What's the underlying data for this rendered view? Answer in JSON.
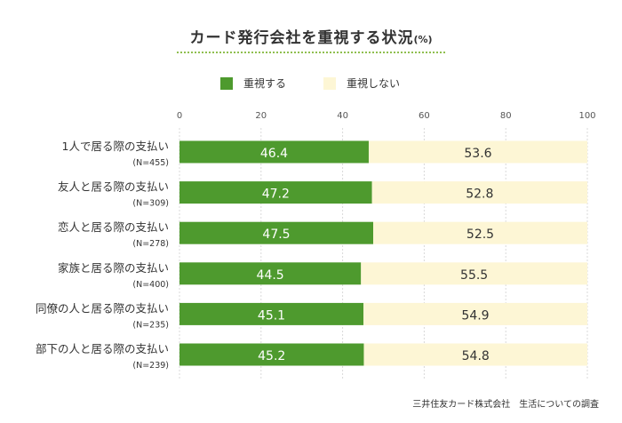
{
  "title": "カード発行会社を重視する状況",
  "title_unit": "(%)",
  "source": "三井住友カード株式会社　生活についての調査",
  "colors": {
    "primary": "#4e9a2e",
    "secondary": "#fdf6d5",
    "rule": "#8fbf4f"
  },
  "chart_data": {
    "type": "bar",
    "stacked": true,
    "orientation": "horizontal",
    "xlim": [
      0,
      100
    ],
    "xticks": [
      "0",
      "20",
      "40",
      "60",
      "80",
      "100"
    ],
    "categories": [
      "1人で居る際の支払い",
      "友人と居る際の支払い",
      "恋人と居る際の支払い",
      "家族と居る際の支払い",
      "同僚の人と居る際の支払い",
      "部下の人と居る際の支払い"
    ],
    "sample_sizes": [
      "(N=455)",
      "(N=309)",
      "(N=278)",
      "(N=400)",
      "(N=235)",
      "(N=239)"
    ],
    "series": [
      {
        "name": "重視する",
        "color": "#4e9a2e",
        "values": [
          46.4,
          47.2,
          47.5,
          44.5,
          45.1,
          45.2
        ],
        "labels": [
          "46.4",
          "47.2",
          "47.5",
          "44.5",
          "45.1",
          "45.2"
        ]
      },
      {
        "name": "重視しない",
        "color": "#fdf6d5",
        "values": [
          53.6,
          52.8,
          52.5,
          55.5,
          54.9,
          54.8
        ],
        "labels": [
          "53.6",
          "52.8",
          "52.5",
          "55.5",
          "54.9",
          "54.8"
        ]
      }
    ],
    "grid": true,
    "legend_position": "top"
  }
}
